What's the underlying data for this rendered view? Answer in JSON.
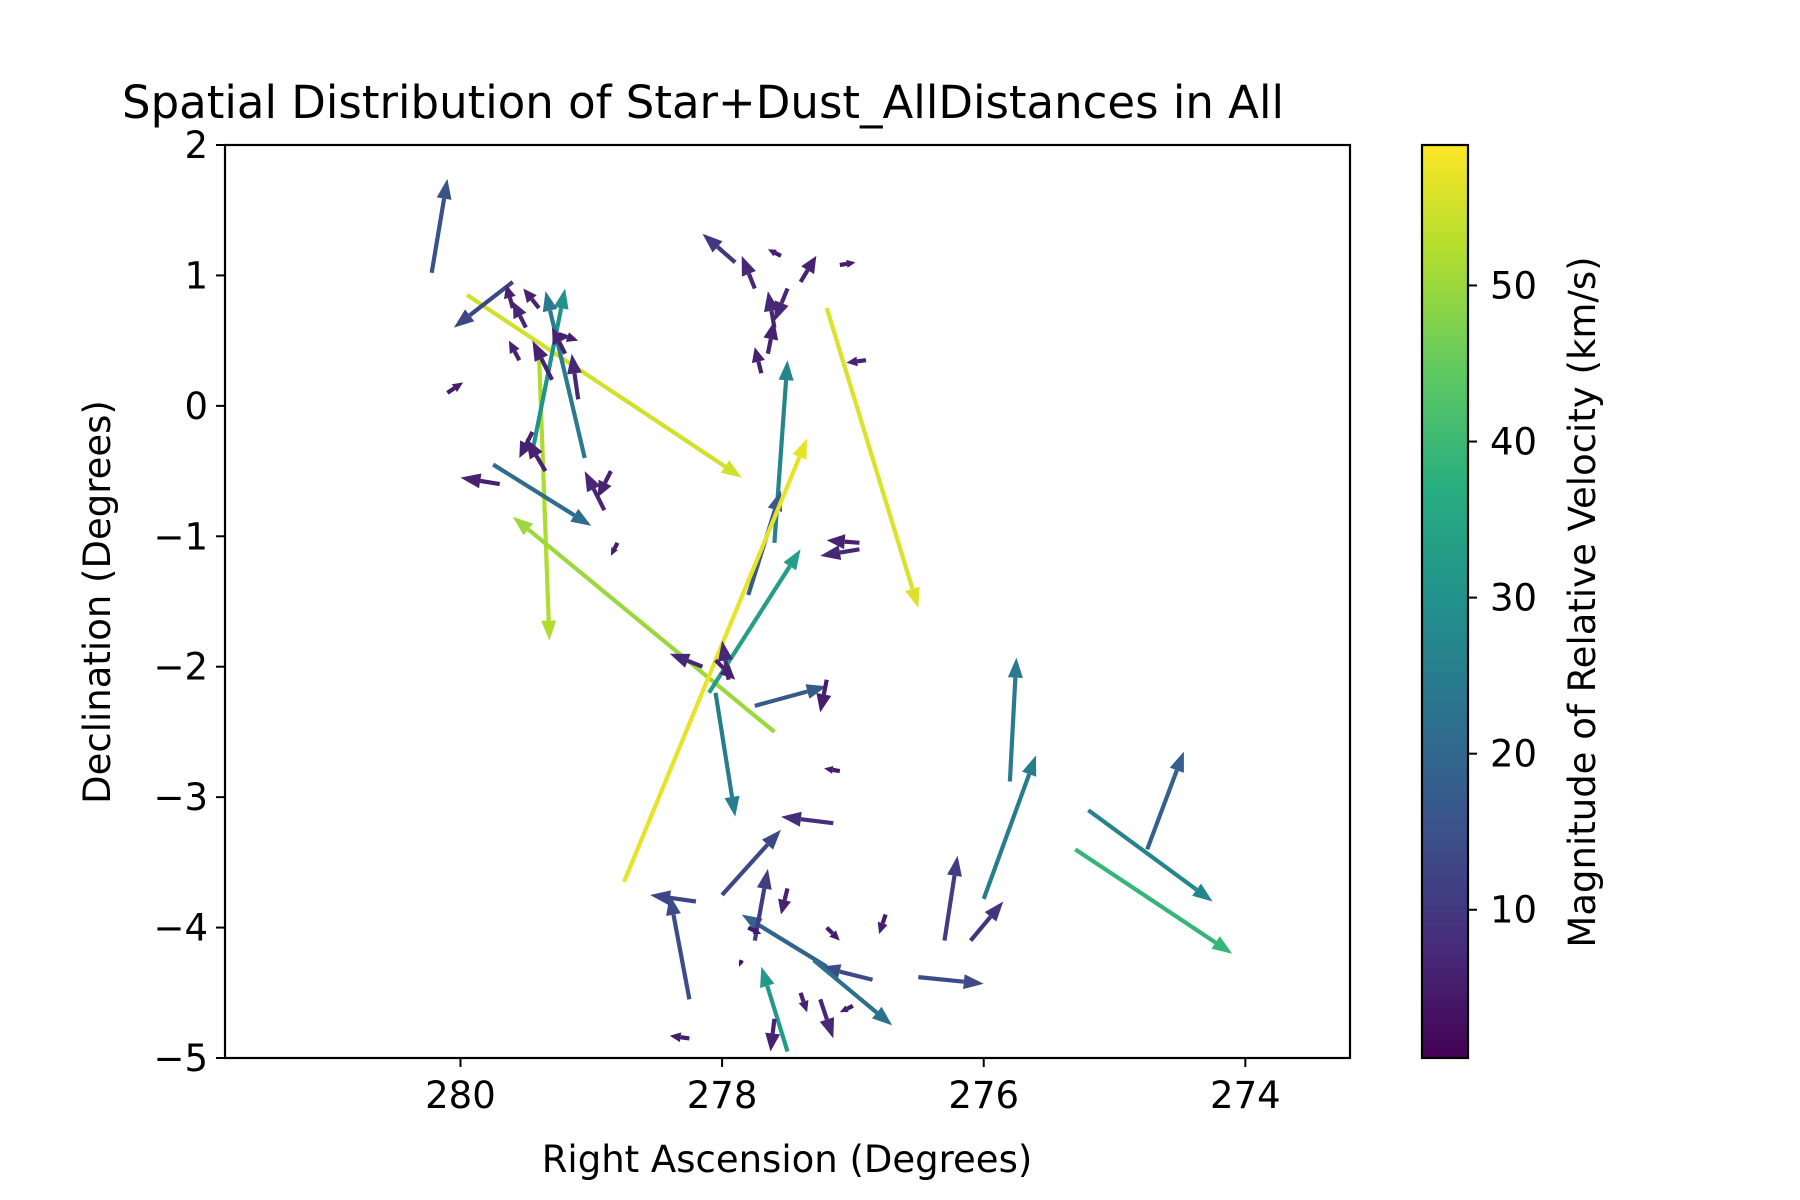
{
  "chart_data": {
    "type": "quiver",
    "title": "Spatial Distribution of Star+Dust_AllDistances in All",
    "xlabel": "Right Ascension (Degrees)",
    "ylabel": "Declination (Degrees)",
    "xlim": [
      281.8,
      273.2
    ],
    "ylim": [
      -5,
      2
    ],
    "xticks": [
      280,
      278,
      276,
      274
    ],
    "yticks": [
      2,
      1,
      0,
      -1,
      -2,
      -3,
      -4,
      -5
    ],
    "x_inverted": true,
    "colorbar": {
      "label": "Magnitude of Relative Velocity (km/s)",
      "colormap": "viridis",
      "range": [
        0.5,
        59
      ],
      "ticks": [
        10,
        20,
        30,
        40,
        50
      ]
    },
    "vectors": [
      {
        "x": 280.22,
        "y": 1.02,
        "dx": -0.12,
        "dy": 0.72,
        "v": 15
      },
      {
        "x": 279.95,
        "y": 0.85,
        "dx": -2.1,
        "dy": -1.4,
        "v": 55
      },
      {
        "x": 279.6,
        "y": 0.95,
        "dx": 0.45,
        "dy": -0.35,
        "v": 13
      },
      {
        "x": 279.4,
        "y": 0.4,
        "dx": -0.08,
        "dy": -2.2,
        "v": 52
      },
      {
        "x": 279.45,
        "y": -0.35,
        "dx": -0.25,
        "dy": 1.25,
        "v": 30
      },
      {
        "x": 279.05,
        "y": -0.4,
        "dx": 0.3,
        "dy": 1.28,
        "v": 24
      },
      {
        "x": 279.75,
        "y": -0.45,
        "dx": -0.75,
        "dy": -0.47,
        "v": 21
      },
      {
        "x": 277.6,
        "y": -2.5,
        "dx": 2.0,
        "dy": 1.65,
        "v": 50
      },
      {
        "x": 277.2,
        "y": 0.75,
        "dx": -0.7,
        "dy": -2.3,
        "v": 56
      },
      {
        "x": 277.6,
        "y": -1.05,
        "dx": -0.1,
        "dy": 1.4,
        "v": 27
      },
      {
        "x": 277.8,
        "y": -1.45,
        "dx": -0.25,
        "dy": 0.8,
        "v": 17
      },
      {
        "x": 278.1,
        "y": -2.2,
        "dx": -0.7,
        "dy": 1.1,
        "v": 33
      },
      {
        "x": 278.75,
        "y": -3.65,
        "dx": -1.4,
        "dy": 3.4,
        "v": 57
      },
      {
        "x": 278.05,
        "y": -2.2,
        "dx": -0.15,
        "dy": -0.95,
        "v": 25
      },
      {
        "x": 277.75,
        "y": -2.3,
        "dx": -0.55,
        "dy": 0.15,
        "v": 17
      },
      {
        "x": 277.5,
        "y": -4.95,
        "dx": 0.2,
        "dy": 0.65,
        "v": 32
      },
      {
        "x": 278.25,
        "y": -4.55,
        "dx": 0.15,
        "dy": 0.8,
        "v": 14
      },
      {
        "x": 278.0,
        "y": -3.75,
        "dx": -0.45,
        "dy": 0.5,
        "v": 13
      },
      {
        "x": 278.2,
        "y": -3.8,
        "dx": 0.35,
        "dy": 0.05,
        "v": 13
      },
      {
        "x": 276.3,
        "y": -4.1,
        "dx": -0.1,
        "dy": 0.65,
        "v": 11
      },
      {
        "x": 276.0,
        "y": -3.78,
        "dx": -0.4,
        "dy": 1.1,
        "v": 25
      },
      {
        "x": 275.8,
        "y": -2.88,
        "dx": -0.05,
        "dy": 0.95,
        "v": 24
      },
      {
        "x": 275.2,
        "y": -3.1,
        "dx": -0.95,
        "dy": -0.7,
        "v": 27
      },
      {
        "x": 275.3,
        "y": -3.4,
        "dx": -1.2,
        "dy": -0.8,
        "v": 39
      },
      {
        "x": 274.75,
        "y": -3.4,
        "dx": -0.28,
        "dy": 0.75,
        "v": 18
      },
      {
        "x": 277.2,
        "y": -4.3,
        "dx": 0.65,
        "dy": 0.4,
        "v": 19
      },
      {
        "x": 276.85,
        "y": -4.4,
        "dx": 0.4,
        "dy": 0.1,
        "v": 14
      },
      {
        "x": 276.5,
        "y": -4.38,
        "dx": -0.5,
        "dy": -0.05,
        "v": 14
      },
      {
        "x": 277.3,
        "y": -4.25,
        "dx": -0.6,
        "dy": -0.5,
        "v": 22
      },
      {
        "x": 277.75,
        "y": -4.1,
        "dx": -0.1,
        "dy": 0.55,
        "v": 11
      },
      {
        "x": 277.9,
        "y": 1.1,
        "dx": 0.25,
        "dy": 0.22,
        "v": 10
      },
      {
        "x": 277.15,
        "y": -3.2,
        "dx": 0.4,
        "dy": 0.05,
        "v": 8
      },
      {
        "x": 279.7,
        "y": -0.6,
        "dx": 0.3,
        "dy": 0.05,
        "v": 6
      },
      {
        "x": 276.1,
        "y": -4.1,
        "dx": -0.25,
        "dy": 0.3,
        "v": 9
      },
      {
        "x": 278.8,
        "y": -1.05,
        "dx": 0.05,
        "dy": -0.1,
        "v": 5
      },
      {
        "x": 279.3,
        "y": 0.2,
        "dx": 0.15,
        "dy": 0.3,
        "v": 6
      },
      {
        "x": 279.1,
        "y": 0.05,
        "dx": 0.05,
        "dy": 0.35,
        "v": 7
      },
      {
        "x": 279.35,
        "y": -0.5,
        "dx": 0.15,
        "dy": 0.25,
        "v": 6
      },
      {
        "x": 279.45,
        "y": -0.2,
        "dx": 0.1,
        "dy": -0.2,
        "v": 6
      },
      {
        "x": 278.9,
        "y": -0.8,
        "dx": 0.15,
        "dy": 0.3,
        "v": 7
      },
      {
        "x": 278.85,
        "y": -0.5,
        "dx": 0.1,
        "dy": -0.2,
        "v": 6
      },
      {
        "x": 279.5,
        "y": 0.6,
        "dx": 0.1,
        "dy": 0.2,
        "v": 7
      },
      {
        "x": 279.6,
        "y": 0.75,
        "dx": 0.05,
        "dy": 0.18,
        "v": 6
      },
      {
        "x": 279.4,
        "y": 0.75,
        "dx": 0.12,
        "dy": 0.15,
        "v": 6
      },
      {
        "x": 279.25,
        "y": 0.55,
        "dx": -0.15,
        "dy": -0.05,
        "v": 5
      },
      {
        "x": 279.2,
        "y": 0.4,
        "dx": 0.1,
        "dy": 0.2,
        "v": 6
      },
      {
        "x": 280.1,
        "y": 0.1,
        "dx": -0.12,
        "dy": 0.08,
        "v": 5
      },
      {
        "x": 279.55,
        "y": 0.35,
        "dx": 0.08,
        "dy": 0.15,
        "v": 6
      },
      {
        "x": 277.75,
        "y": 0.9,
        "dx": 0.1,
        "dy": 0.25,
        "v": 7
      },
      {
        "x": 277.6,
        "y": 0.6,
        "dx": 0.05,
        "dy": 0.28,
        "v": 7
      },
      {
        "x": 277.65,
        "y": 0.4,
        "dx": -0.05,
        "dy": 0.25,
        "v": 6
      },
      {
        "x": 277.5,
        "y": 0.9,
        "dx": 0.1,
        "dy": -0.25,
        "v": 7
      },
      {
        "x": 277.4,
        "y": 0.95,
        "dx": -0.12,
        "dy": 0.2,
        "v": 6
      },
      {
        "x": 277.55,
        "y": 1.15,
        "dx": 0.1,
        "dy": 0.05,
        "v": 5
      },
      {
        "x": 277.7,
        "y": 0.25,
        "dx": 0.05,
        "dy": 0.2,
        "v": 6
      },
      {
        "x": 277.1,
        "y": 1.08,
        "dx": -0.12,
        "dy": 0.02,
        "v": 5
      },
      {
        "x": 276.9,
        "y": 0.35,
        "dx": 0.15,
        "dy": -0.02,
        "v": 6
      },
      {
        "x": 276.95,
        "y": -1.05,
        "dx": 0.25,
        "dy": 0.02,
        "v": 6
      },
      {
        "x": 276.95,
        "y": -1.1,
        "dx": 0.3,
        "dy": -0.05,
        "v": 7
      },
      {
        "x": 278.15,
        "y": -2.0,
        "dx": 0.25,
        "dy": 0.1,
        "v": 7
      },
      {
        "x": 277.95,
        "y": -2.1,
        "dx": 0.05,
        "dy": 0.3,
        "v": 7
      },
      {
        "x": 278.05,
        "y": -1.95,
        "dx": -0.15,
        "dy": -0.15,
        "v": 6
      },
      {
        "x": 277.2,
        "y": -2.1,
        "dx": 0.05,
        "dy": -0.25,
        "v": 5
      },
      {
        "x": 277.1,
        "y": -2.8,
        "dx": 0.12,
        "dy": 0.02,
        "v": 5
      },
      {
        "x": 276.75,
        "y": -3.9,
        "dx": 0.05,
        "dy": -0.15,
        "v": 5
      },
      {
        "x": 277.5,
        "y": -3.7,
        "dx": 0.05,
        "dy": -0.2,
        "v": 6
      },
      {
        "x": 277.6,
        "y": -4.7,
        "dx": 0.03,
        "dy": -0.25,
        "v": 6
      },
      {
        "x": 277.4,
        "y": -4.5,
        "dx": -0.05,
        "dy": -0.15,
        "v": 6
      },
      {
        "x": 277.25,
        "y": -4.55,
        "dx": -0.1,
        "dy": -0.3,
        "v": 7
      },
      {
        "x": 277.0,
        "y": -4.6,
        "dx": 0.1,
        "dy": -0.05,
        "v": 5
      },
      {
        "x": 278.25,
        "y": -4.85,
        "dx": 0.15,
        "dy": 0.02,
        "v": 5
      },
      {
        "x": 277.8,
        "y": -4.0,
        "dx": -0.1,
        "dy": -0.05,
        "v": 4
      },
      {
        "x": 277.85,
        "y": -4.25,
        "dx": 0.02,
        "dy": -0.05,
        "v": 3
      },
      {
        "x": 277.2,
        "y": -4.0,
        "dx": -0.1,
        "dy": -0.1,
        "v": 5
      }
    ]
  }
}
